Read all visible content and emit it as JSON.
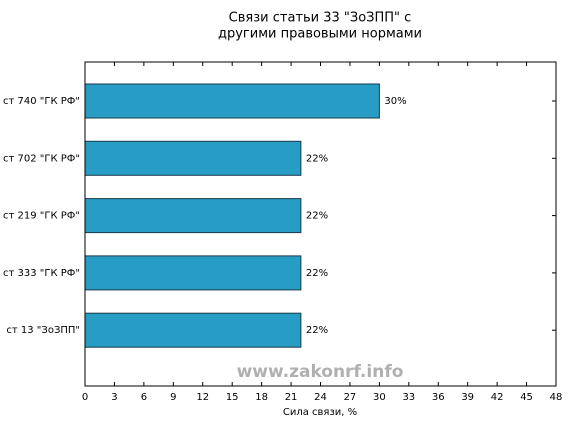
{
  "chart_data": {
    "type": "barh",
    "title": [
      "Связи статьи 33 \"ЗоЗПП\" с",
      "другими правовыми нормами"
    ],
    "categories": [
      "ст 740 \"ГК РФ\"",
      "ст 702 \"ГК РФ\"",
      "ст 219 \"ГК РФ\"",
      "ст 333 \"ГК РФ\"",
      "ст 13 \"ЗоЗПП\""
    ],
    "values": [
      30,
      22,
      22,
      22,
      22
    ],
    "value_labels": [
      "30%",
      "22%",
      "22%",
      "22%",
      "22%"
    ],
    "color": "#279cc4",
    "xlabel": "Сила связи, %",
    "xlim": [
      0,
      48
    ],
    "xticks": [
      0,
      3,
      6,
      9,
      12,
      15,
      18,
      21,
      24,
      27,
      30,
      33,
      36,
      39,
      42,
      45,
      48
    ],
    "watermark": "www.zakonrf.info"
  }
}
